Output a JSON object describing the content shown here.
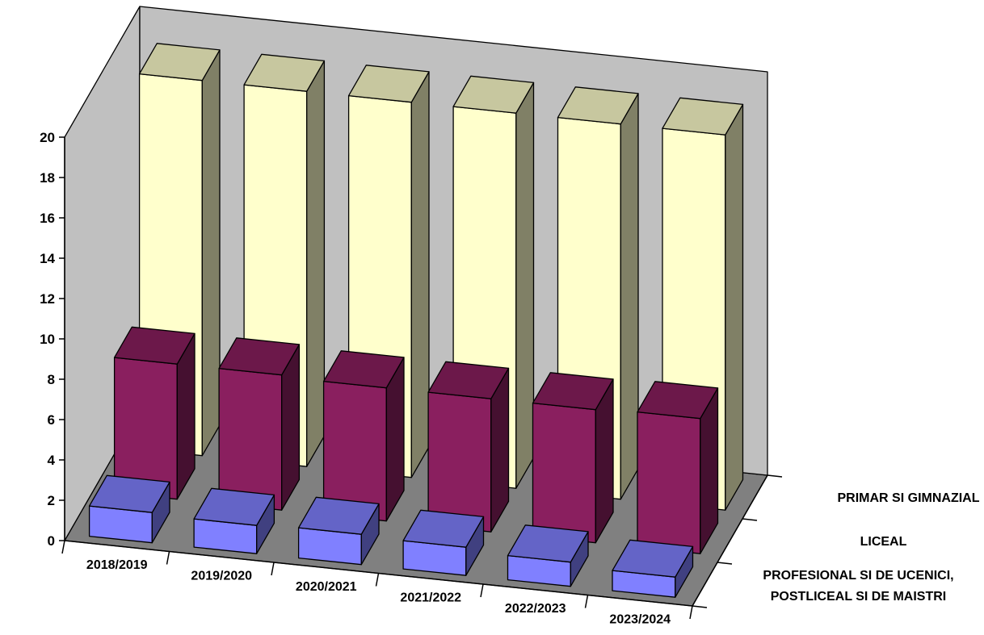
{
  "chart_data": {
    "type": "bar",
    "variant": "3d-column",
    "categories": [
      "2018/2019",
      "2019/2020",
      "2020/2021",
      "2021/2022",
      "2022/2023",
      "2023/2024"
    ],
    "series": [
      {
        "name": "PROFESIONAL SI DE UCENICI,\nPOSTLICEAL SI DE MAISTRI",
        "values": [
          1.5,
          1.4,
          1.5,
          1.4,
          1.2,
          1.0
        ],
        "color": "#8080ff"
      },
      {
        "name": "LICEAL",
        "values": [
          6.7,
          6.7,
          6.6,
          6.6,
          6.6,
          6.7
        ],
        "color": "#8a1f5f"
      },
      {
        "name": "PRIMAR SI GIMNAZIAL",
        "values": [
          18.6,
          18.6,
          18.6,
          18.6,
          18.6,
          18.6
        ],
        "color": "#ffffcc"
      }
    ],
    "yticks": [
      "0",
      "2",
      "4",
      "6",
      "8",
      "10",
      "12",
      "14",
      "16",
      "18",
      "20"
    ],
    "ylim": [
      0,
      20
    ],
    "title": "",
    "xlabel": "",
    "ylabel": "",
    "grid": false,
    "legend": "right"
  }
}
